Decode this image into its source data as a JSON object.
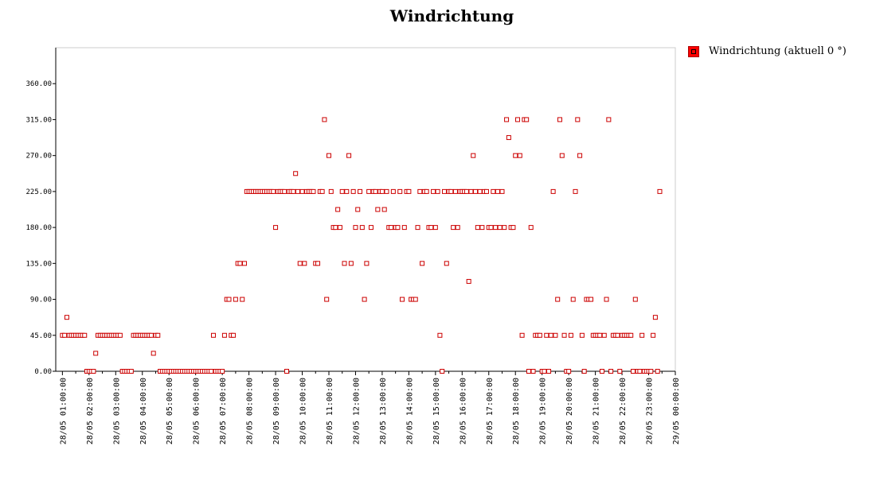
{
  "chart_data": {
    "type": "scatter",
    "title": "Windrichtung",
    "xlabel": "",
    "ylabel": "",
    "legend_position": "top-right",
    "grid": false,
    "ylim": [
      0,
      405
    ],
    "xlim": [
      "28/05 00:45:00",
      "29/05 00:00:00"
    ],
    "y_ticks": [
      "0.00",
      "45.00",
      "90.00",
      "135.00",
      "180.00",
      "225.00",
      "270.00",
      "315.00",
      "360.00"
    ],
    "x_ticks": [
      "28/05 01:00:00",
      "28/05 02:00:00",
      "28/05 03:00:00",
      "28/05 04:00:00",
      "28/05 05:00:00",
      "28/05 06:00:00",
      "28/05 07:00:00",
      "28/05 08:00:00",
      "28/05 09:00:00",
      "28/05 10:00:00",
      "28/05 11:00:00",
      "28/05 12:00:00",
      "28/05 13:00:00",
      "28/05 14:00:00",
      "28/05 15:00:00",
      "28/05 16:00:00",
      "28/05 17:00:00",
      "28/05 18:00:00",
      "28/05 19:00:00",
      "28/05 20:00:00",
      "28/05 21:00:00",
      "28/05 22:00:00",
      "28/05 23:00:00",
      "29/05 00:00:00"
    ],
    "series": [
      {
        "name": "Windrichtung (aktuell 0 °)",
        "color": "#cc0000",
        "points": [
          [
            "01:00",
            45
          ],
          [
            "01:05",
            45
          ],
          [
            "01:10",
            67.5
          ],
          [
            "01:15",
            45
          ],
          [
            "01:20",
            45
          ],
          [
            "01:25",
            45
          ],
          [
            "01:30",
            45
          ],
          [
            "01:35",
            45
          ],
          [
            "01:40",
            45
          ],
          [
            "01:45",
            45
          ],
          [
            "01:50",
            45
          ],
          [
            "01:55",
            0
          ],
          [
            "02:00",
            0
          ],
          [
            "02:05",
            0
          ],
          [
            "02:10",
            0
          ],
          [
            "02:15",
            22.5
          ],
          [
            "02:20",
            45
          ],
          [
            "02:25",
            45
          ],
          [
            "02:30",
            45
          ],
          [
            "02:35",
            45
          ],
          [
            "02:40",
            45
          ],
          [
            "02:45",
            45
          ],
          [
            "02:50",
            45
          ],
          [
            "02:55",
            45
          ],
          [
            "03:00",
            45
          ],
          [
            "03:05",
            45
          ],
          [
            "03:10",
            45
          ],
          [
            "03:15",
            0
          ],
          [
            "03:20",
            0
          ],
          [
            "03:25",
            0
          ],
          [
            "03:30",
            0
          ],
          [
            "03:35",
            0
          ],
          [
            "03:40",
            45
          ],
          [
            "03:45",
            45
          ],
          [
            "03:50",
            45
          ],
          [
            "03:55",
            45
          ],
          [
            "04:00",
            45
          ],
          [
            "04:05",
            45
          ],
          [
            "04:10",
            45
          ],
          [
            "04:15",
            45
          ],
          [
            "04:20",
            45
          ],
          [
            "04:25",
            22.5
          ],
          [
            "04:30",
            45
          ],
          [
            "04:35",
            45
          ],
          [
            "04:40",
            0
          ],
          [
            "04:45",
            0
          ],
          [
            "04:50",
            0
          ],
          [
            "04:55",
            0
          ],
          [
            "05:00",
            0
          ],
          [
            "05:05",
            0
          ],
          [
            "05:10",
            0
          ],
          [
            "05:15",
            0
          ],
          [
            "05:20",
            0
          ],
          [
            "05:25",
            0
          ],
          [
            "05:30",
            0
          ],
          [
            "05:35",
            0
          ],
          [
            "05:40",
            0
          ],
          [
            "05:45",
            0
          ],
          [
            "05:50",
            0
          ],
          [
            "05:55",
            0
          ],
          [
            "06:00",
            0
          ],
          [
            "06:05",
            0
          ],
          [
            "06:10",
            0
          ],
          [
            "06:15",
            0
          ],
          [
            "06:20",
            0
          ],
          [
            "06:25",
            0
          ],
          [
            "06:30",
            0
          ],
          [
            "06:35",
            0
          ],
          [
            "06:40",
            45
          ],
          [
            "06:45",
            0
          ],
          [
            "06:50",
            0
          ],
          [
            "06:55",
            0
          ],
          [
            "07:00",
            0
          ],
          [
            "07:05",
            45
          ],
          [
            "07:10",
            90
          ],
          [
            "07:15",
            90
          ],
          [
            "07:20",
            45
          ],
          [
            "07:25",
            45
          ],
          [
            "07:30",
            90
          ],
          [
            "07:35",
            135
          ],
          [
            "07:40",
            135
          ],
          [
            "07:45",
            90
          ],
          [
            "07:50",
            135
          ],
          [
            "07:55",
            225
          ],
          [
            "08:00",
            225
          ],
          [
            "08:05",
            225
          ],
          [
            "08:10",
            225
          ],
          [
            "08:15",
            225
          ],
          [
            "08:20",
            225
          ],
          [
            "08:25",
            225
          ],
          [
            "08:30",
            225
          ],
          [
            "08:35",
            225
          ],
          [
            "08:40",
            225
          ],
          [
            "08:45",
            225
          ],
          [
            "08:50",
            225
          ],
          [
            "08:55",
            225
          ],
          [
            "09:00",
            180
          ],
          [
            "09:05",
            225
          ],
          [
            "09:10",
            225
          ],
          [
            "09:15",
            225
          ],
          [
            "09:20",
            225
          ],
          [
            "09:25",
            0
          ],
          [
            "09:30",
            225
          ],
          [
            "09:35",
            225
          ],
          [
            "09:40",
            225
          ],
          [
            "09:45",
            247.5
          ],
          [
            "09:50",
            225
          ],
          [
            "09:55",
            135
          ],
          [
            "10:00",
            225
          ],
          [
            "10:05",
            135
          ],
          [
            "10:10",
            225
          ],
          [
            "10:15",
            225
          ],
          [
            "10:20",
            225
          ],
          [
            "10:25",
            225
          ],
          [
            "10:30",
            135
          ],
          [
            "10:35",
            135
          ],
          [
            "10:40",
            225
          ],
          [
            "10:45",
            225
          ],
          [
            "10:50",
            315
          ],
          [
            "10:55",
            90
          ],
          [
            "11:00",
            270
          ],
          [
            "11:05",
            225
          ],
          [
            "11:10",
            180
          ],
          [
            "11:15",
            180
          ],
          [
            "11:20",
            202.5
          ],
          [
            "11:25",
            180
          ],
          [
            "11:30",
            225
          ],
          [
            "11:35",
            135
          ],
          [
            "11:40",
            225
          ],
          [
            "11:45",
            270
          ],
          [
            "11:50",
            135
          ],
          [
            "11:55",
            225
          ],
          [
            "12:00",
            180
          ],
          [
            "12:05",
            202.5
          ],
          [
            "12:10",
            225
          ],
          [
            "12:15",
            180
          ],
          [
            "12:20",
            90
          ],
          [
            "12:25",
            135
          ],
          [
            "12:30",
            225
          ],
          [
            "12:35",
            180
          ],
          [
            "12:40",
            225
          ],
          [
            "12:45",
            225
          ],
          [
            "12:50",
            202.5
          ],
          [
            "12:55",
            225
          ],
          [
            "13:00",
            225
          ],
          [
            "13:05",
            202.5
          ],
          [
            "13:10",
            225
          ],
          [
            "13:15",
            180
          ],
          [
            "13:20",
            180
          ],
          [
            "13:25",
            225
          ],
          [
            "13:30",
            180
          ],
          [
            "13:35",
            180
          ],
          [
            "13:40",
            225
          ],
          [
            "13:45",
            90
          ],
          [
            "13:50",
            180
          ],
          [
            "13:55",
            225
          ],
          [
            "14:00",
            225
          ],
          [
            "14:05",
            90
          ],
          [
            "14:10",
            90
          ],
          [
            "14:15",
            90
          ],
          [
            "14:20",
            180
          ],
          [
            "14:25",
            225
          ],
          [
            "14:30",
            135
          ],
          [
            "14:35",
            225
          ],
          [
            "14:40",
            225
          ],
          [
            "14:45",
            180
          ],
          [
            "14:50",
            180
          ],
          [
            "14:55",
            225
          ],
          [
            "15:00",
            180
          ],
          [
            "15:05",
            225
          ],
          [
            "15:10",
            45
          ],
          [
            "15:15",
            0
          ],
          [
            "15:20",
            225
          ],
          [
            "15:25",
            135
          ],
          [
            "15:30",
            225
          ],
          [
            "15:35",
            225
          ],
          [
            "15:40",
            180
          ],
          [
            "15:45",
            225
          ],
          [
            "15:50",
            180
          ],
          [
            "15:55",
            225
          ],
          [
            "16:00",
            225
          ],
          [
            "16:05",
            225
          ],
          [
            "16:10",
            225
          ],
          [
            "16:15",
            112.5
          ],
          [
            "16:20",
            225
          ],
          [
            "16:25",
            270
          ],
          [
            "16:30",
            225
          ],
          [
            "16:35",
            180
          ],
          [
            "16:40",
            225
          ],
          [
            "16:45",
            180
          ],
          [
            "16:50",
            225
          ],
          [
            "16:55",
            225
          ],
          [
            "17:00",
            180
          ],
          [
            "17:05",
            180
          ],
          [
            "17:10",
            225
          ],
          [
            "17:15",
            180
          ],
          [
            "17:20",
            225
          ],
          [
            "17:25",
            180
          ],
          [
            "17:30",
            225
          ],
          [
            "17:35",
            180
          ],
          [
            "17:40",
            315
          ],
          [
            "17:45",
            292.5
          ],
          [
            "17:50",
            180
          ],
          [
            "17:55",
            180
          ],
          [
            "18:00",
            270
          ],
          [
            "18:05",
            315
          ],
          [
            "18:10",
            270
          ],
          [
            "18:15",
            45
          ],
          [
            "18:20",
            315
          ],
          [
            "18:25",
            315
          ],
          [
            "18:30",
            0
          ],
          [
            "18:35",
            180
          ],
          [
            "18:40",
            0
          ],
          [
            "18:45",
            45
          ],
          [
            "18:50",
            45
          ],
          [
            "18:55",
            45
          ],
          [
            "19:00",
            0
          ],
          [
            "19:05",
            0
          ],
          [
            "19:10",
            45
          ],
          [
            "19:15",
            0
          ],
          [
            "19:20",
            45
          ],
          [
            "19:25",
            225
          ],
          [
            "19:30",
            45
          ],
          [
            "19:35",
            90
          ],
          [
            "19:40",
            315
          ],
          [
            "19:45",
            270
          ],
          [
            "19:50",
            45
          ],
          [
            "19:55",
            0
          ],
          [
            "20:00",
            0
          ],
          [
            "20:05",
            45
          ],
          [
            "20:10",
            90
          ],
          [
            "20:15",
            225
          ],
          [
            "20:20",
            315
          ],
          [
            "20:25",
            270
          ],
          [
            "20:30",
            45
          ],
          [
            "20:35",
            0
          ],
          [
            "20:40",
            90
          ],
          [
            "20:45",
            90
          ],
          [
            "20:50",
            90
          ],
          [
            "20:55",
            45
          ],
          [
            "21:00",
            45
          ],
          [
            "21:05",
            45
          ],
          [
            "21:10",
            45
          ],
          [
            "21:15",
            0
          ],
          [
            "21:20",
            45
          ],
          [
            "21:25",
            90
          ],
          [
            "21:30",
            315
          ],
          [
            "21:35",
            0
          ],
          [
            "21:40",
            45
          ],
          [
            "21:45",
            45
          ],
          [
            "21:50",
            45
          ],
          [
            "21:55",
            0
          ],
          [
            "22:00",
            45
          ],
          [
            "22:05",
            45
          ],
          [
            "22:10",
            45
          ],
          [
            "22:15",
            45
          ],
          [
            "22:20",
            45
          ],
          [
            "22:25",
            0
          ],
          [
            "22:30",
            90
          ],
          [
            "22:35",
            0
          ],
          [
            "22:40",
            0
          ],
          [
            "22:45",
            45
          ],
          [
            "22:50",
            0
          ],
          [
            "22:55",
            0
          ],
          [
            "23:00",
            0
          ],
          [
            "23:05",
            0
          ],
          [
            "23:10",
            45
          ],
          [
            "23:15",
            67.5
          ],
          [
            "23:20",
            0
          ],
          [
            "23:25",
            225
          ]
        ]
      }
    ]
  }
}
